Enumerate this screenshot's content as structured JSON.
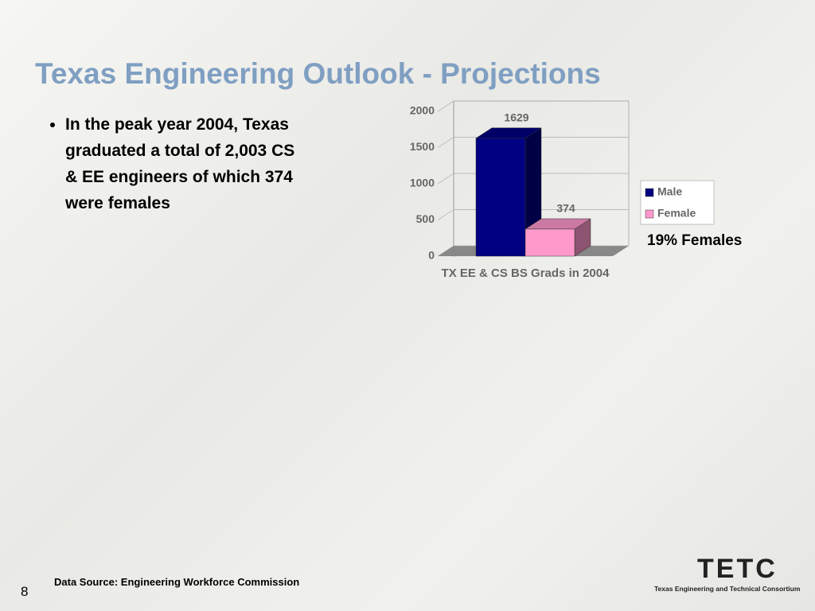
{
  "slide": {
    "title": "Texas Engineering Outlook - Projections",
    "bullet": "In the peak year 2004, Texas graduated a total of 2,003 CS & EE engineers of which 374 were females",
    "source": "Data Source: Engineering Workforce Commission",
    "page_number": "8",
    "logo": {
      "name": "TETC",
      "subtitle": "Texas Engineering and Technical Consortium"
    }
  },
  "chart_data": {
    "type": "bar3d",
    "categories": [
      "TX EE & CS BS Grads in 2004"
    ],
    "series": [
      {
        "name": "Male",
        "color": "#000080",
        "values": [
          1629
        ]
      },
      {
        "name": "Female",
        "color": "#ff99cc",
        "values": [
          374
        ]
      }
    ],
    "ylim": [
      0,
      2000
    ],
    "yticks": [
      0,
      500,
      1000,
      1500,
      2000
    ],
    "grid": true,
    "annotation": "19% Females"
  }
}
